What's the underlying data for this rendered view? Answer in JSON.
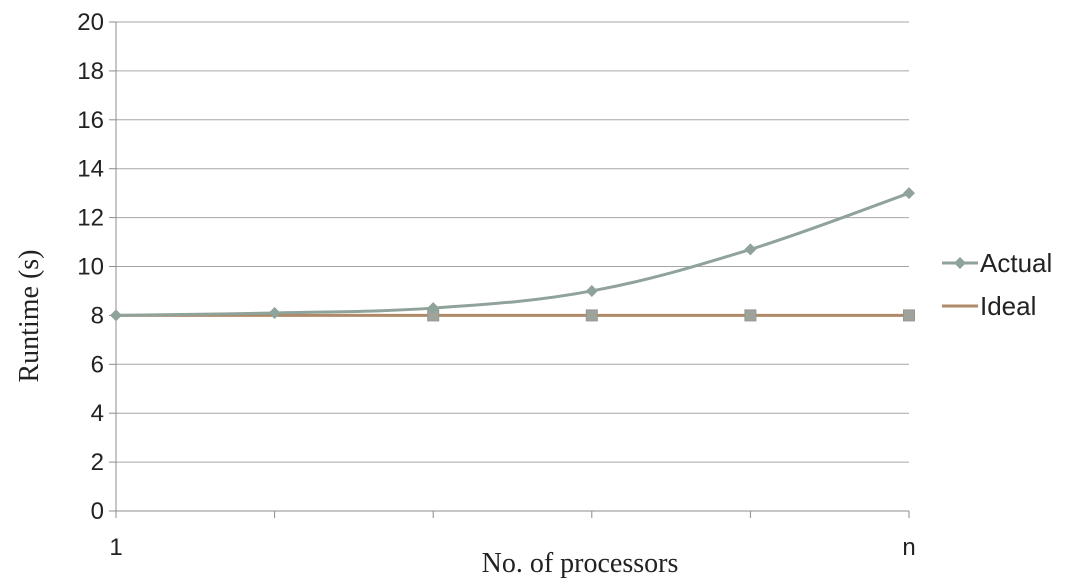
{
  "chart_data": {
    "type": "line",
    "title": "",
    "xlabel": "No. of processors",
    "ylabel": "Runtime (s)",
    "x": [
      1,
      2,
      3,
      4,
      5,
      6
    ],
    "x_tick_labels": [
      "1",
      "",
      "",
      "",
      "",
      "n"
    ],
    "ylim": [
      0,
      20
    ],
    "y_ticks": [
      0,
      2,
      4,
      6,
      8,
      10,
      12,
      14,
      16,
      18,
      20
    ],
    "grid": "horizontal",
    "legend_position": "right",
    "series": [
      {
        "name": "Actual",
        "values": [
          8.0,
          8.1,
          8.3,
          9.0,
          10.7,
          13.0
        ],
        "color": "#8fa39a",
        "marker": "diamond"
      },
      {
        "name": "Ideal",
        "values": [
          8,
          8,
          8,
          8,
          8,
          8
        ],
        "color": "#b08a68",
        "marker": "square"
      }
    ]
  }
}
